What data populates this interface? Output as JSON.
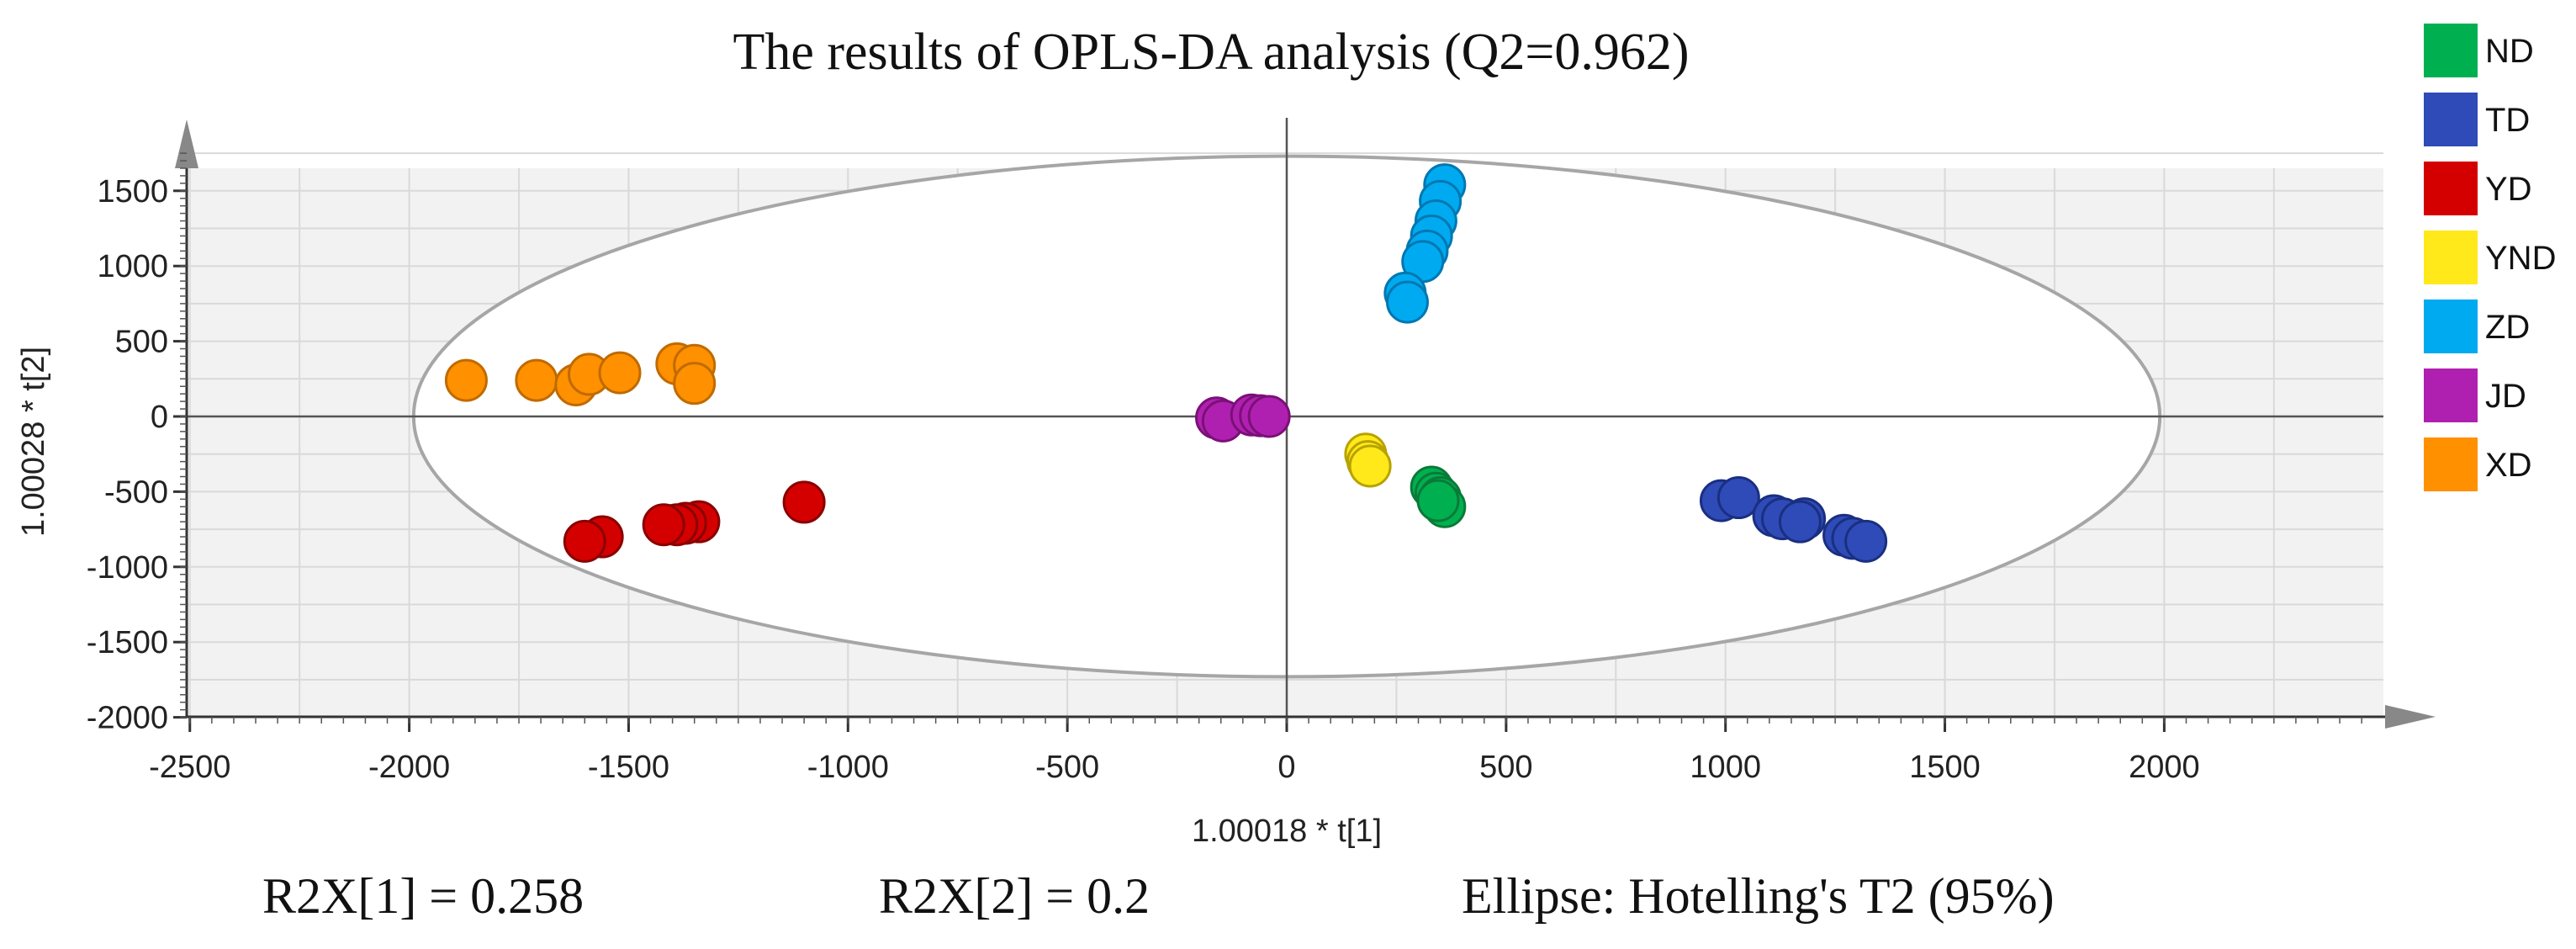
{
  "chart_data": {
    "type": "scatter",
    "title": "The results of OPLS-DA analysis (Q2=0.962)",
    "xlabel": "1.00018 * t[1]",
    "ylabel": "1.00028 * t[2]",
    "xlim": [
      -2500,
      2500
    ],
    "ylim": [
      -2000,
      1800
    ],
    "xticks": [
      -2500,
      -2000,
      -1500,
      -1000,
      -500,
      0,
      500,
      1000,
      1500,
      2000
    ],
    "yticks": [
      -2000,
      -1500,
      -1000,
      -500,
      0,
      500,
      1000,
      1500
    ],
    "grid": true,
    "legend_position": "right",
    "ellipse": {
      "label": "Ellipse: Hotelling's T2 (95%)",
      "center": [
        0,
        0
      ],
      "semi_axis_x": 1990,
      "semi_axis_y": 1730
    },
    "series": [
      {
        "name": "ND",
        "color": "#00b050",
        "edge": "#0a7a38",
        "points": [
          [
            330,
            -470
          ],
          [
            340,
            -510
          ],
          [
            350,
            -540
          ],
          [
            360,
            -600
          ],
          [
            345,
            -560
          ]
        ]
      },
      {
        "name": "TD",
        "color": "#2e4bb8",
        "edge": "#1a2f80",
        "points": [
          [
            990,
            -560
          ],
          [
            1030,
            -540
          ],
          [
            1110,
            -660
          ],
          [
            1130,
            -680
          ],
          [
            1180,
            -680
          ],
          [
            1170,
            -700
          ],
          [
            1270,
            -790
          ],
          [
            1290,
            -810
          ],
          [
            1320,
            -830
          ]
        ]
      },
      {
        "name": "YD",
        "color": "#d40000",
        "edge": "#8a0000",
        "points": [
          [
            -1100,
            -570
          ],
          [
            -1340,
            -700
          ],
          [
            -1370,
            -710
          ],
          [
            -1390,
            -720
          ],
          [
            -1420,
            -720
          ],
          [
            -1560,
            -800
          ],
          [
            -1600,
            -830
          ]
        ]
      },
      {
        "name": "YND",
        "color": "#ffe91a",
        "edge": "#b8a200",
        "points": [
          [
            180,
            -250
          ],
          [
            185,
            -300
          ],
          [
            190,
            -330
          ]
        ]
      },
      {
        "name": "ZD",
        "color": "#00aaf0",
        "edge": "#0077b0",
        "points": [
          [
            360,
            1540
          ],
          [
            350,
            1430
          ],
          [
            340,
            1300
          ],
          [
            330,
            1200
          ],
          [
            320,
            1100
          ],
          [
            310,
            1030
          ],
          [
            270,
            820
          ],
          [
            275,
            760
          ]
        ]
      },
      {
        "name": "JD",
        "color": "#b020b0",
        "edge": "#7a1078",
        "points": [
          [
            -160,
            -10
          ],
          [
            -145,
            -30
          ],
          [
            -80,
            10
          ],
          [
            -60,
            5
          ],
          [
            -40,
            0
          ]
        ]
      },
      {
        "name": "XD",
        "color": "#ff9000",
        "edge": "#c06a00",
        "points": [
          [
            -1870,
            240
          ],
          [
            -1710,
            240
          ],
          [
            -1620,
            210
          ],
          [
            -1590,
            280
          ],
          [
            -1520,
            290
          ],
          [
            -1390,
            350
          ],
          [
            -1350,
            340
          ],
          [
            -1350,
            220
          ]
        ]
      }
    ],
    "annotations": {
      "r2x1": "R2X[1] = 0.258",
      "r2x2": "R2X[2] = 0.2",
      "ellipse_label": "Ellipse: Hotelling's T2 (95%)"
    }
  }
}
